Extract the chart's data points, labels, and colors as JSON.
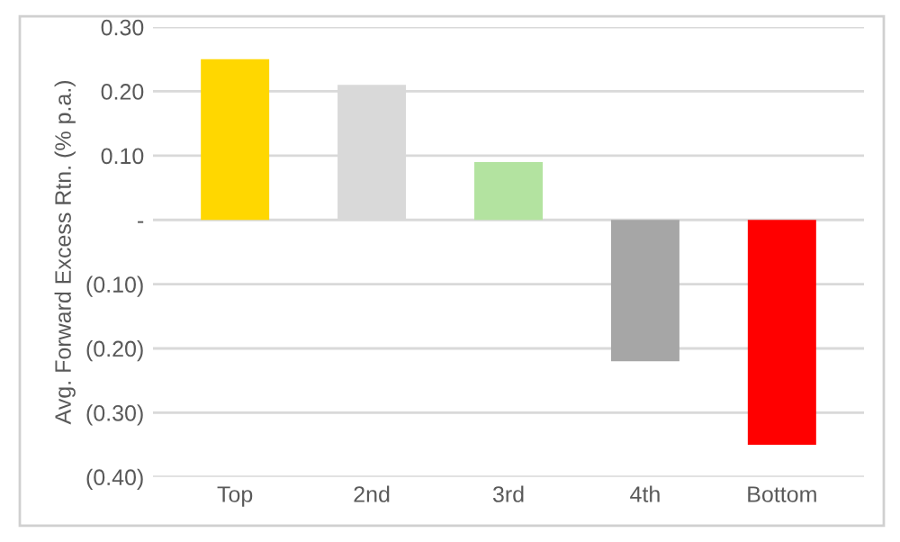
{
  "chart_data": {
    "type": "bar",
    "ylabel": "Avg. Forward Excess Rtn. (% p.a.)",
    "categories": [
      "Top",
      "2nd",
      "3rd",
      "4th",
      "Bottom"
    ],
    "values": [
      0.25,
      0.21,
      0.09,
      -0.22,
      -0.35
    ],
    "colors": [
      "#ffd700",
      "#d9d9d9",
      "#b3e3a0",
      "#a6a6a6",
      "#ff0000"
    ],
    "ylim": [
      -0.4,
      0.3
    ],
    "yticks": [
      {
        "value": 0.3,
        "label": "0.30"
      },
      {
        "value": 0.2,
        "label": "0.20"
      },
      {
        "value": 0.1,
        "label": "0.10"
      },
      {
        "value": 0,
        "label": "-"
      },
      {
        "value": -0.1,
        "label": "(0.10)"
      },
      {
        "value": -0.2,
        "label": "(0.20)"
      },
      {
        "value": -0.3,
        "label": "(0.30)"
      },
      {
        "value": -0.4,
        "label": "(0.40)"
      }
    ],
    "grid": "y"
  }
}
